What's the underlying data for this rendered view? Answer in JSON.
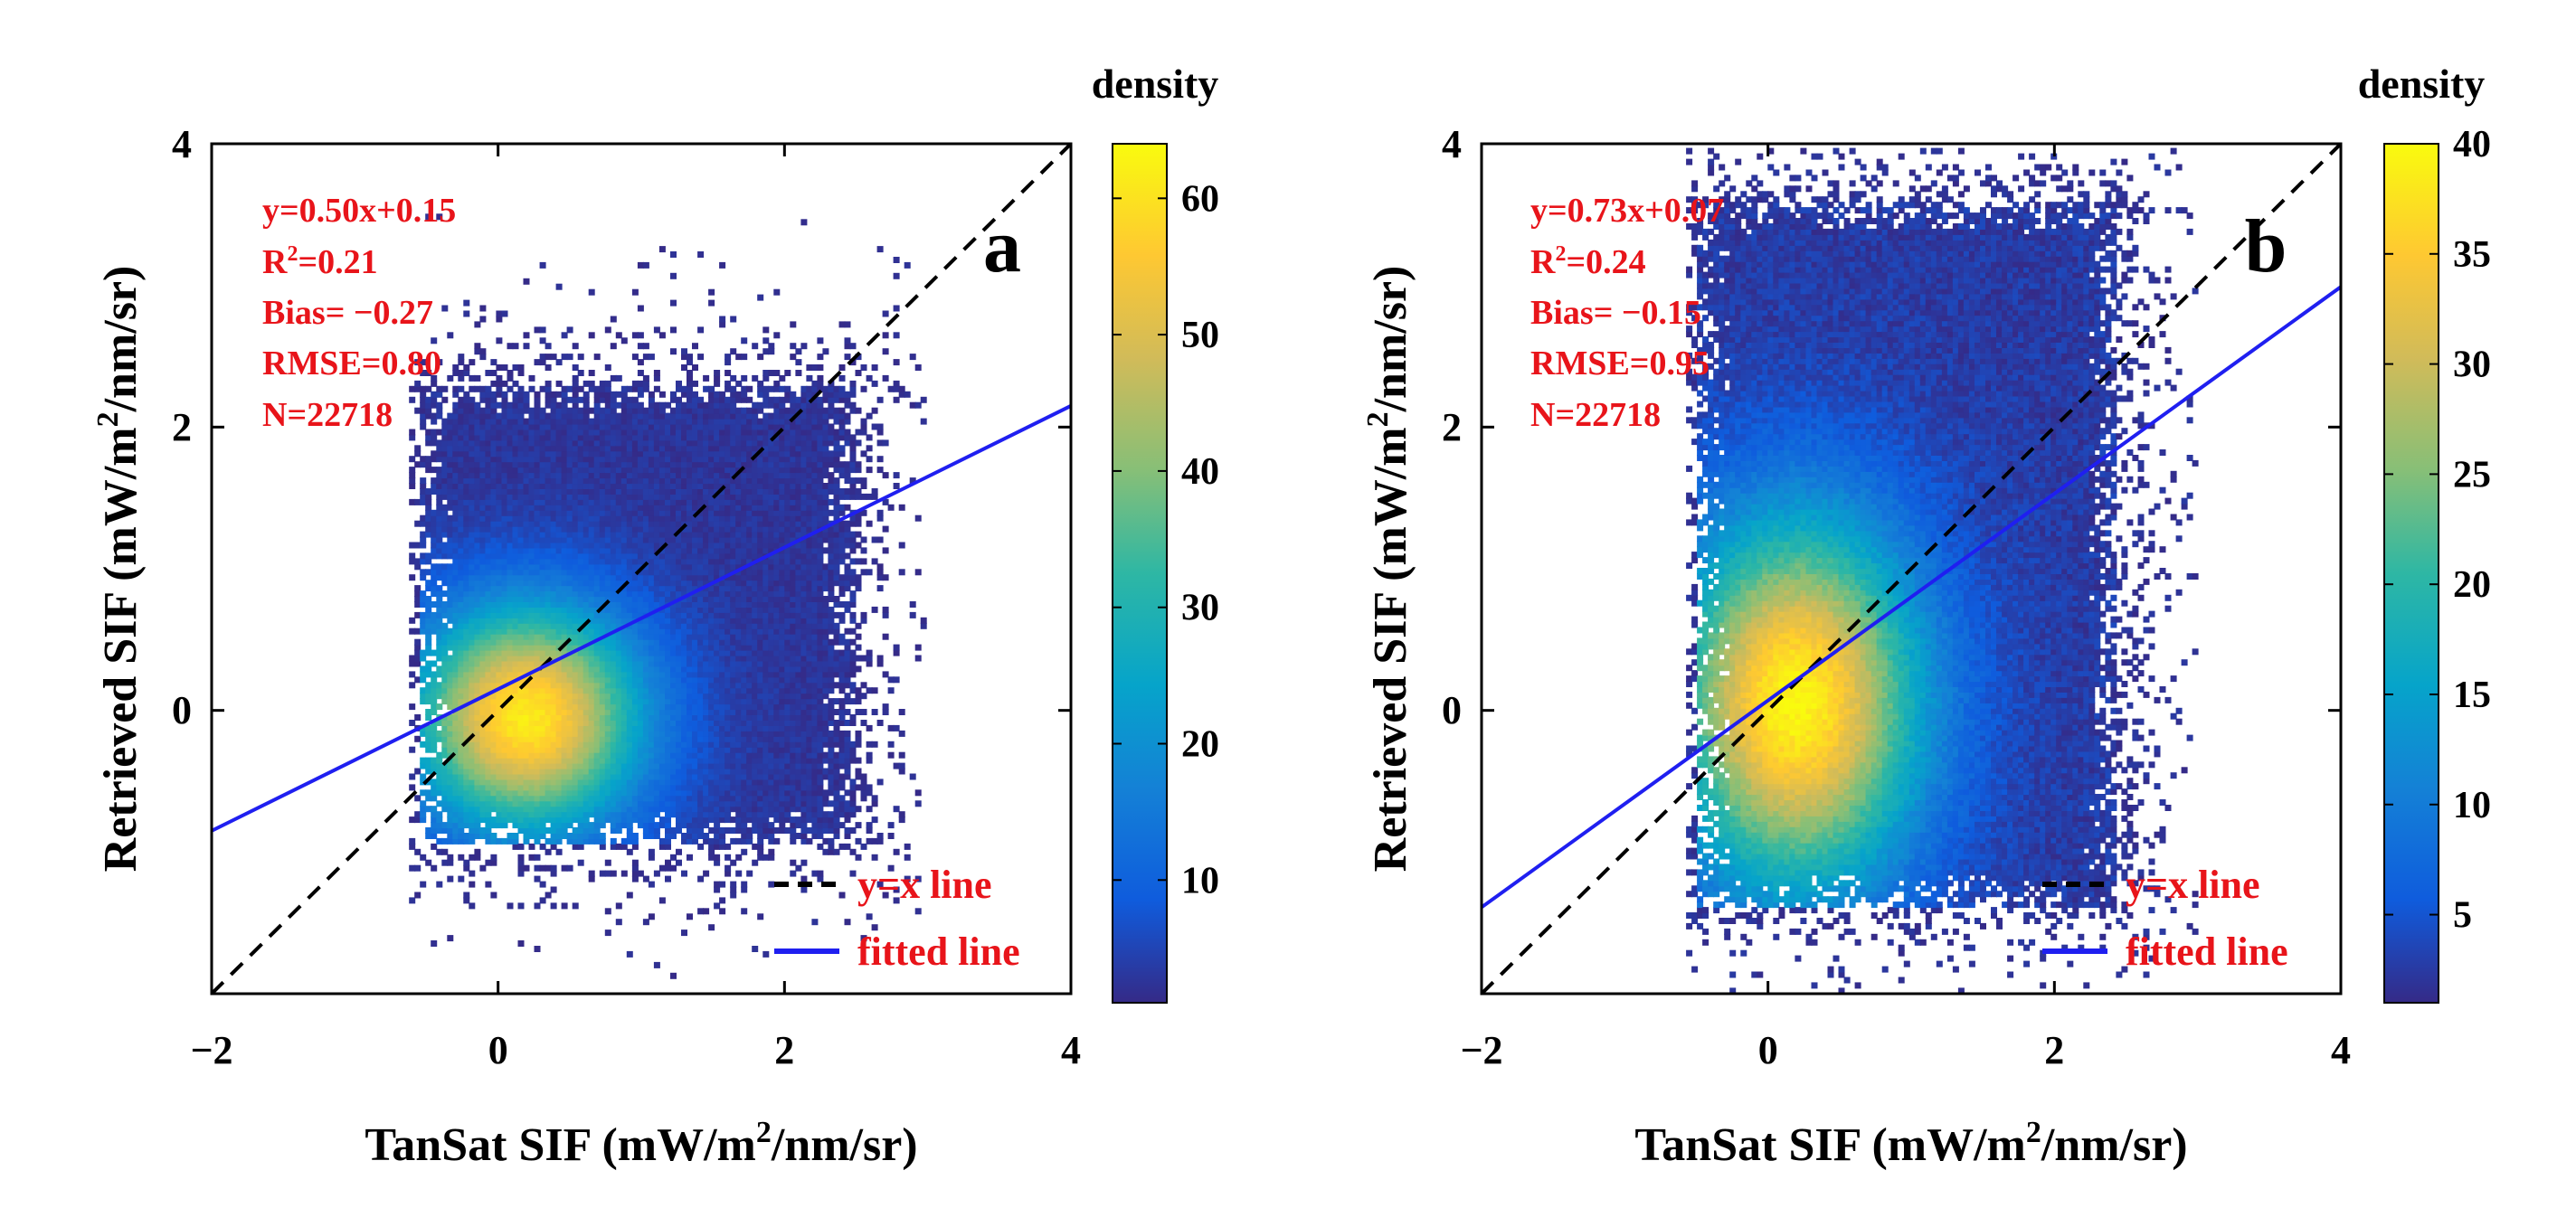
{
  "chart_data": [
    {
      "type": "scatter",
      "panel_label": "a",
      "xlabel_main": "TanSat SIF (mW/m",
      "xlabel_sup": "2",
      "xlabel_tail": "/nm/sr)",
      "ylabel_main": "Retrieved SIF (mW/m",
      "ylabel_sup": "2",
      "ylabel_tail": "/nm/sr)",
      "xlim": [
        -2,
        4
      ],
      "ylim": [
        -2,
        4
      ],
      "xticks": [
        -2,
        0,
        2,
        4
      ],
      "xtick_labels": [
        "−2",
        "0",
        "2",
        "4"
      ],
      "yticks": [
        0,
        2,
        4
      ],
      "ytick_labels": [
        "0",
        "2",
        "4"
      ],
      "stats": {
        "equation": "y=0.50x+0.15",
        "r2_prefix": "R",
        "r2_sup": "2",
        "r2_value": "=0.21",
        "bias": "Bias= −0.27",
        "rmse": "RMSE=0.80",
        "n": "N=22718"
      },
      "fit": {
        "slope": 0.5,
        "intercept": 0.15
      },
      "legend": {
        "identity_label": "y=x line",
        "fit_label": "fitted line",
        "position": "bottom-right"
      },
      "colorbar": {
        "title": "density",
        "min": 1,
        "max": 64,
        "ticks": [
          10,
          20,
          30,
          40,
          50,
          60
        ],
        "tick_labels": [
          "10",
          "20",
          "30",
          "40",
          "50",
          "60"
        ]
      },
      "density": {
        "peak": [
          0.2,
          -0.05
        ],
        "peak_value": 60,
        "x_range": [
          -0.55,
          2.5
        ],
        "y_range": [
          -0.95,
          2.3
        ],
        "sigma": [
          0.55,
          0.55
        ],
        "sparse_x_range": [
          -0.6,
          3.0
        ],
        "sparse_y_range": [
          -1.95,
          3.6
        ]
      },
      "colors": {
        "identity_line": "#000000",
        "fit_line": "#1f1ff0",
        "text": "#e8141a"
      }
    },
    {
      "type": "scatter",
      "panel_label": "b",
      "xlabel_main": "TanSat SIF (mW/m",
      "xlabel_sup": "2",
      "xlabel_tail": "/nm/sr)",
      "ylabel_main": "Retrieved SIF (mW/m",
      "ylabel_sup": "2",
      "ylabel_tail": "/nm/sr)",
      "xlim": [
        -2,
        4
      ],
      "ylim": [
        -2,
        4
      ],
      "xticks": [
        -2,
        0,
        2,
        4
      ],
      "xtick_labels": [
        "−2",
        "0",
        "2",
        "4"
      ],
      "yticks": [
        0,
        2,
        4
      ],
      "ytick_labels": [
        "0",
        "2",
        "4"
      ],
      "stats": {
        "equation": "y=0.73x+0.07",
        "r2_prefix": "R",
        "r2_sup": "2",
        "r2_value": "=0.24",
        "bias": "Bias= −0.15",
        "rmse": "RMSE=0.95",
        "n": "N=22718"
      },
      "fit": {
        "slope": 0.73,
        "intercept": 0.07
      },
      "legend": {
        "identity_label": "y=x line",
        "fit_label": "fitted line",
        "position": "bottom-right"
      },
      "colorbar": {
        "title": "density",
        "min": 1,
        "max": 40,
        "ticks": [
          5,
          10,
          15,
          20,
          25,
          30,
          35,
          40
        ],
        "tick_labels": [
          "5",
          "10",
          "15",
          "20",
          "25",
          "30",
          "35",
          "40"
        ]
      },
      "density": {
        "peak": [
          0.2,
          0.05
        ],
        "peak_value": 38,
        "x_range": [
          -0.5,
          2.45
        ],
        "y_range": [
          -1.4,
          3.6
        ],
        "sigma": [
          0.6,
          0.9
        ],
        "sparse_x_range": [
          -0.55,
          3.0
        ],
        "sparse_y_range": [
          -1.98,
          3.98
        ]
      },
      "colors": {
        "identity_line": "#000000",
        "fit_line": "#1f1ff0",
        "text": "#e8141a"
      }
    }
  ]
}
